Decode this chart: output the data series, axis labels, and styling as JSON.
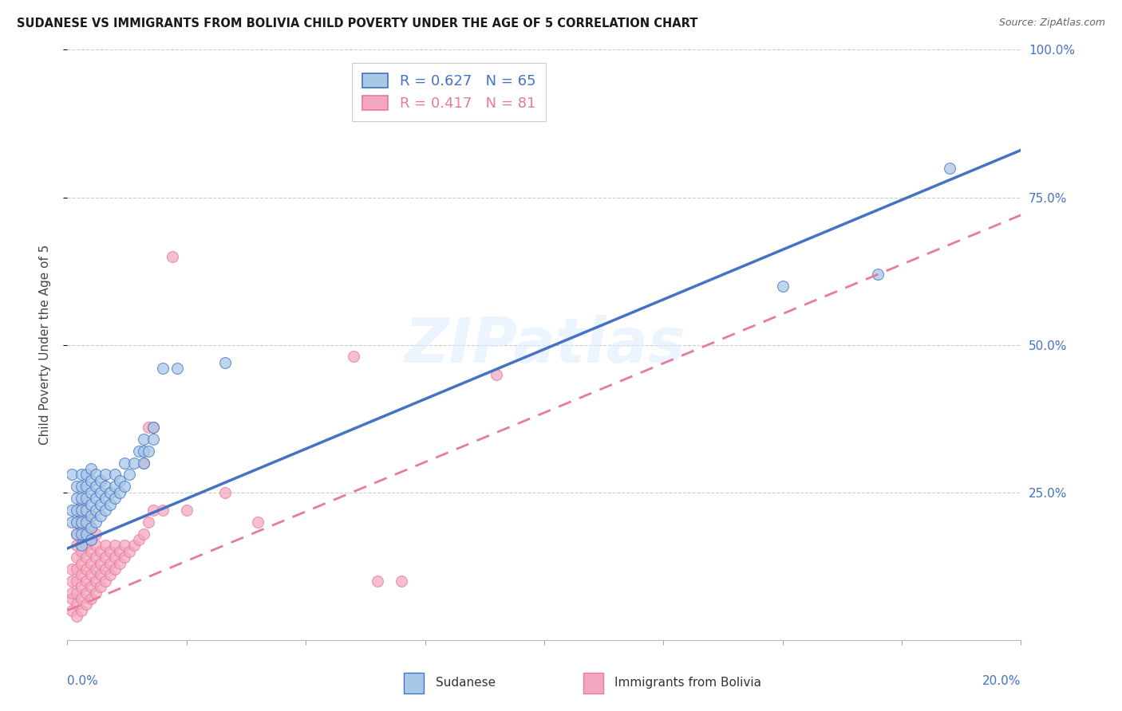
{
  "title": "SUDANESE VS IMMIGRANTS FROM BOLIVIA CHILD POVERTY UNDER THE AGE OF 5 CORRELATION CHART",
  "source": "Source: ZipAtlas.com",
  "ylabel": "Child Poverty Under the Age of 5",
  "xlim": [
    0,
    0.2
  ],
  "ylim": [
    0,
    1.0
  ],
  "sudanese_color": "#a8c8e8",
  "bolivia_color": "#f4a8c0",
  "trendline_blue": "#4472c4",
  "trendline_pink": "#e87a9a",
  "legend_R1": "R = 0.627",
  "legend_N1": "N = 65",
  "legend_R2": "R = 0.417",
  "legend_N2": "N = 81",
  "legend_label1": "Sudanese",
  "legend_label2": "Immigrants from Bolivia",
  "watermark": "ZIPatlas",
  "blue_line_x0": 0.0,
  "blue_line_y0": 0.155,
  "blue_line_x1": 0.2,
  "blue_line_y1": 0.83,
  "pink_line_x0": 0.0,
  "pink_line_y0": 0.05,
  "pink_line_x1": 0.2,
  "pink_line_y1": 0.72,
  "sudanese_x": [
    0.001,
    0.001,
    0.001,
    0.002,
    0.002,
    0.002,
    0.002,
    0.002,
    0.003,
    0.003,
    0.003,
    0.003,
    0.003,
    0.003,
    0.003,
    0.004,
    0.004,
    0.004,
    0.004,
    0.004,
    0.004,
    0.005,
    0.005,
    0.005,
    0.005,
    0.005,
    0.005,
    0.005,
    0.006,
    0.006,
    0.006,
    0.006,
    0.006,
    0.007,
    0.007,
    0.007,
    0.007,
    0.008,
    0.008,
    0.008,
    0.008,
    0.009,
    0.009,
    0.01,
    0.01,
    0.01,
    0.011,
    0.011,
    0.012,
    0.012,
    0.013,
    0.014,
    0.015,
    0.016,
    0.016,
    0.016,
    0.017,
    0.018,
    0.018,
    0.02,
    0.023,
    0.033,
    0.15,
    0.17,
    0.185
  ],
  "sudanese_y": [
    0.2,
    0.22,
    0.28,
    0.18,
    0.2,
    0.22,
    0.24,
    0.26,
    0.16,
    0.18,
    0.2,
    0.22,
    0.24,
    0.26,
    0.28,
    0.18,
    0.2,
    0.22,
    0.24,
    0.26,
    0.28,
    0.17,
    0.19,
    0.21,
    0.23,
    0.25,
    0.27,
    0.29,
    0.2,
    0.22,
    0.24,
    0.26,
    0.28,
    0.21,
    0.23,
    0.25,
    0.27,
    0.22,
    0.24,
    0.26,
    0.28,
    0.23,
    0.25,
    0.24,
    0.26,
    0.28,
    0.25,
    0.27,
    0.26,
    0.3,
    0.28,
    0.3,
    0.32,
    0.3,
    0.32,
    0.34,
    0.32,
    0.34,
    0.36,
    0.46,
    0.46,
    0.47,
    0.6,
    0.62,
    0.8
  ],
  "bolivia_x": [
    0.001,
    0.001,
    0.001,
    0.001,
    0.001,
    0.002,
    0.002,
    0.002,
    0.002,
    0.002,
    0.002,
    0.002,
    0.002,
    0.002,
    0.003,
    0.003,
    0.003,
    0.003,
    0.003,
    0.003,
    0.003,
    0.003,
    0.003,
    0.003,
    0.004,
    0.004,
    0.004,
    0.004,
    0.004,
    0.004,
    0.004,
    0.005,
    0.005,
    0.005,
    0.005,
    0.005,
    0.005,
    0.005,
    0.005,
    0.006,
    0.006,
    0.006,
    0.006,
    0.006,
    0.006,
    0.007,
    0.007,
    0.007,
    0.007,
    0.008,
    0.008,
    0.008,
    0.008,
    0.009,
    0.009,
    0.009,
    0.01,
    0.01,
    0.01,
    0.011,
    0.011,
    0.012,
    0.012,
    0.013,
    0.014,
    0.015,
    0.016,
    0.016,
    0.017,
    0.017,
    0.018,
    0.018,
    0.02,
    0.022,
    0.025,
    0.033,
    0.04,
    0.06,
    0.065,
    0.07,
    0.09
  ],
  "bolivia_y": [
    0.05,
    0.07,
    0.08,
    0.1,
    0.12,
    0.04,
    0.06,
    0.08,
    0.1,
    0.12,
    0.14,
    0.16,
    0.18,
    0.2,
    0.05,
    0.07,
    0.09,
    0.11,
    0.13,
    0.15,
    0.17,
    0.19,
    0.21,
    0.23,
    0.06,
    0.08,
    0.1,
    0.12,
    0.14,
    0.16,
    0.18,
    0.07,
    0.09,
    0.11,
    0.13,
    0.15,
    0.17,
    0.19,
    0.21,
    0.08,
    0.1,
    0.12,
    0.14,
    0.16,
    0.18,
    0.09,
    0.11,
    0.13,
    0.15,
    0.1,
    0.12,
    0.14,
    0.16,
    0.11,
    0.13,
    0.15,
    0.12,
    0.14,
    0.16,
    0.13,
    0.15,
    0.14,
    0.16,
    0.15,
    0.16,
    0.17,
    0.18,
    0.3,
    0.2,
    0.36,
    0.22,
    0.36,
    0.22,
    0.65,
    0.22,
    0.25,
    0.2,
    0.48,
    0.1,
    0.1,
    0.45
  ]
}
